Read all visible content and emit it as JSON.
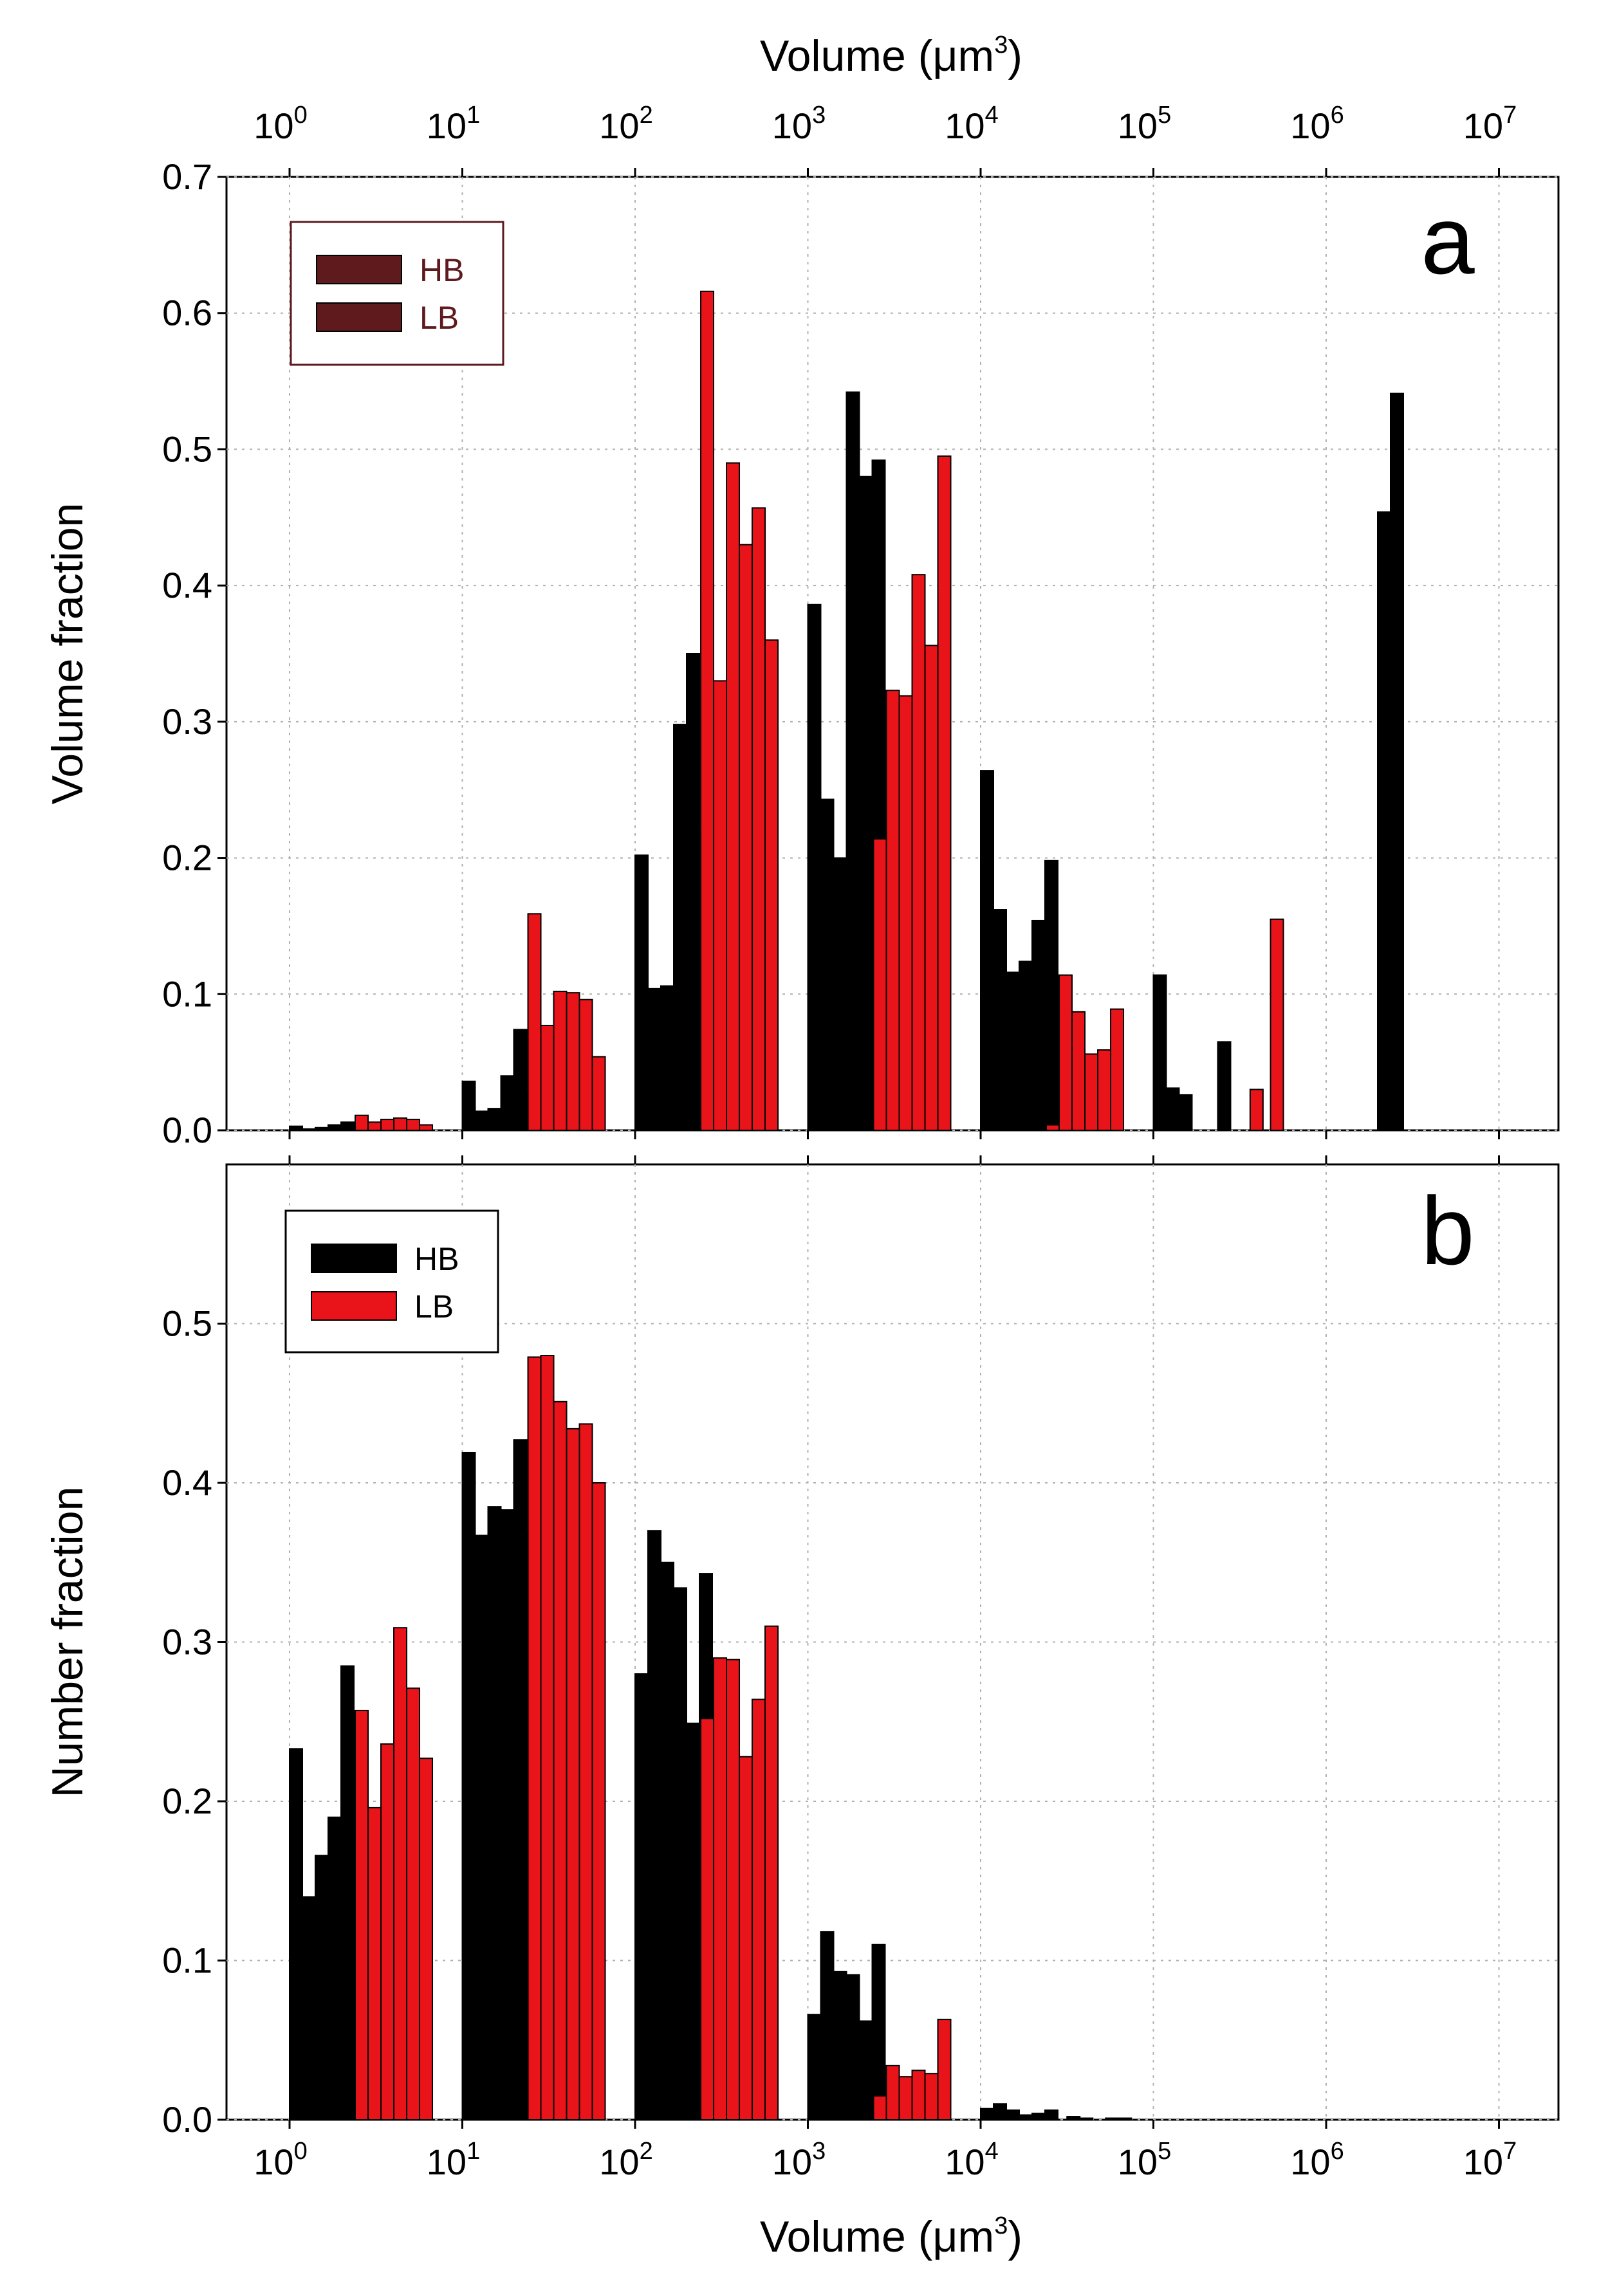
{
  "chart_data": [
    {
      "panel": "a",
      "type": "bar",
      "xscale": "log",
      "xlabel_parts": [
        "Volume (",
        "μm",
        "3",
        ")"
      ],
      "ylabel": "Volume fraction",
      "ylim": [
        0,
        0.7
      ],
      "yticks": [
        "0.0",
        "0.1",
        "0.2",
        "0.3",
        "0.4",
        "0.5",
        "0.6",
        "0.7"
      ],
      "xtick_labels": [
        {
          "base": "10",
          "exp": "0"
        },
        {
          "base": "10",
          "exp": "1"
        },
        {
          "base": "10",
          "exp": "2"
        },
        {
          "base": "10",
          "exp": "3"
        },
        {
          "base": "10",
          "exp": "4"
        },
        {
          "base": "10",
          "exp": "5"
        },
        {
          "base": "10",
          "exp": "6"
        },
        {
          "base": "10",
          "exp": "7"
        }
      ],
      "xaxis_position": "top",
      "legend": [
        {
          "label": "HB",
          "color": "#5e1a1d"
        },
        {
          "label": "LB",
          "color": "#5e1a1d"
        }
      ],
      "legend_border": "#5e1a1d",
      "legend_text_color": "#5e1a1d",
      "series": [
        {
          "name": "HB",
          "color": "#000000",
          "bins": [
            {
              "start": 0.0,
              "values": [
                0.003,
                0.001,
                0.002,
                0.004,
                0.006,
                0.003
              ]
            },
            {
              "start": 1.0,
              "values": [
                0.036,
                0.014,
                0.016,
                0.04,
                0.074,
                0.028
              ]
            },
            {
              "start": 2.0,
              "values": [
                0.202,
                0.104,
                0.106,
                0.298,
                0.35,
                0.219
              ]
            },
            {
              "start": 3.0,
              "values": [
                0.386,
                0.243,
                0.2,
                0.542,
                0.48,
                0.492
              ]
            },
            {
              "start": 4.0,
              "values": [
                0.264,
                0.162,
                0.116,
                0.124,
                0.154,
                0.198
              ]
            },
            {
              "start": 5.0,
              "values": [
                0.114,
                0.031,
                0.026,
                0.0,
                0.0,
                0.065
              ]
            },
            {
              "start": 6.0,
              "values": [
                0.0,
                0.0,
                0.0,
                0.0,
                0.454,
                0.541
              ]
            }
          ]
        },
        {
          "name": "LB",
          "color": "#e8141a",
          "bins": [
            {
              "start": 0.38,
              "values": [
                0.011,
                0.006,
                0.008,
                0.009,
                0.008,
                0.004
              ]
            },
            {
              "start": 1.38,
              "values": [
                0.159,
                0.077,
                0.102,
                0.101,
                0.096,
                0.054
              ]
            },
            {
              "start": 2.38,
              "values": [
                0.616,
                0.33,
                0.49,
                0.43,
                0.457,
                0.36
              ]
            },
            {
              "start": 3.38,
              "values": [
                0.214,
                0.323,
                0.319,
                0.408,
                0.356,
                0.495
              ]
            },
            {
              "start": 4.38,
              "values": [
                0.004,
                0.114,
                0.087,
                0.056,
                0.059,
                0.089
              ]
            },
            {
              "start": 5.38,
              "values": [
                0.0,
                0.0,
                0.0,
                0.0,
                0.155,
                0.0
              ]
            },
            {
              "start": 5.56,
              "values": [
                0.03
              ]
            }
          ]
        }
      ]
    },
    {
      "panel": "b",
      "type": "bar",
      "xscale": "log",
      "xlabel_parts": [
        "Volume (",
        "μm",
        "3",
        ")"
      ],
      "ylabel": "Number fraction",
      "ylim": [
        0,
        0.6
      ],
      "yticks": [
        "0.0",
        "0.1",
        "0.2",
        "0.3",
        "0.4",
        "0.5"
      ],
      "xtick_labels": [
        {
          "base": "10",
          "exp": "0"
        },
        {
          "base": "10",
          "exp": "1"
        },
        {
          "base": "10",
          "exp": "2"
        },
        {
          "base": "10",
          "exp": "3"
        },
        {
          "base": "10",
          "exp": "4"
        },
        {
          "base": "10",
          "exp": "5"
        },
        {
          "base": "10",
          "exp": "6"
        },
        {
          "base": "10",
          "exp": "7"
        }
      ],
      "xaxis_position": "bottom",
      "legend": [
        {
          "label": "HB",
          "color": "#000000"
        },
        {
          "label": "LB",
          "color": "#e8141a"
        }
      ],
      "legend_border": "#000000",
      "legend_text_color": "#000000",
      "series": [
        {
          "name": "HB",
          "color": "#000000",
          "bins": [
            {
              "start": 0.0,
              "values": [
                0.233,
                0.14,
                0.166,
                0.19,
                0.285,
                0.176
              ]
            },
            {
              "start": 1.0,
              "values": [
                0.419,
                0.367,
                0.385,
                0.383,
                0.427,
                0.37
              ]
            },
            {
              "start": 2.0,
              "values": [
                0.28,
                0.37,
                0.35,
                0.334,
                0.249,
                0.343
              ]
            },
            {
              "start": 3.0,
              "values": [
                0.066,
                0.118,
                0.093,
                0.091,
                0.062,
                0.11
              ]
            },
            {
              "start": 4.0,
              "values": [
                0.007,
                0.01,
                0.006,
                0.003,
                0.004,
                0.006
              ]
            },
            {
              "start": 4.5,
              "values": [
                0.002,
                0.001,
                0.0,
                0.001,
                0.001,
                0.0
              ]
            }
          ]
        },
        {
          "name": "LB",
          "color": "#e8141a",
          "bins": [
            {
              "start": 0.38,
              "values": [
                0.257,
                0.196,
                0.236,
                0.309,
                0.271,
                0.227
              ]
            },
            {
              "start": 1.38,
              "values": [
                0.479,
                0.48,
                0.451,
                0.434,
                0.437,
                0.4
              ]
            },
            {
              "start": 2.38,
              "values": [
                0.252,
                0.29,
                0.289,
                0.228,
                0.264,
                0.31
              ]
            },
            {
              "start": 3.38,
              "values": [
                0.015,
                0.034,
                0.027,
                0.031,
                0.029,
                0.063
              ]
            }
          ]
        }
      ]
    }
  ]
}
